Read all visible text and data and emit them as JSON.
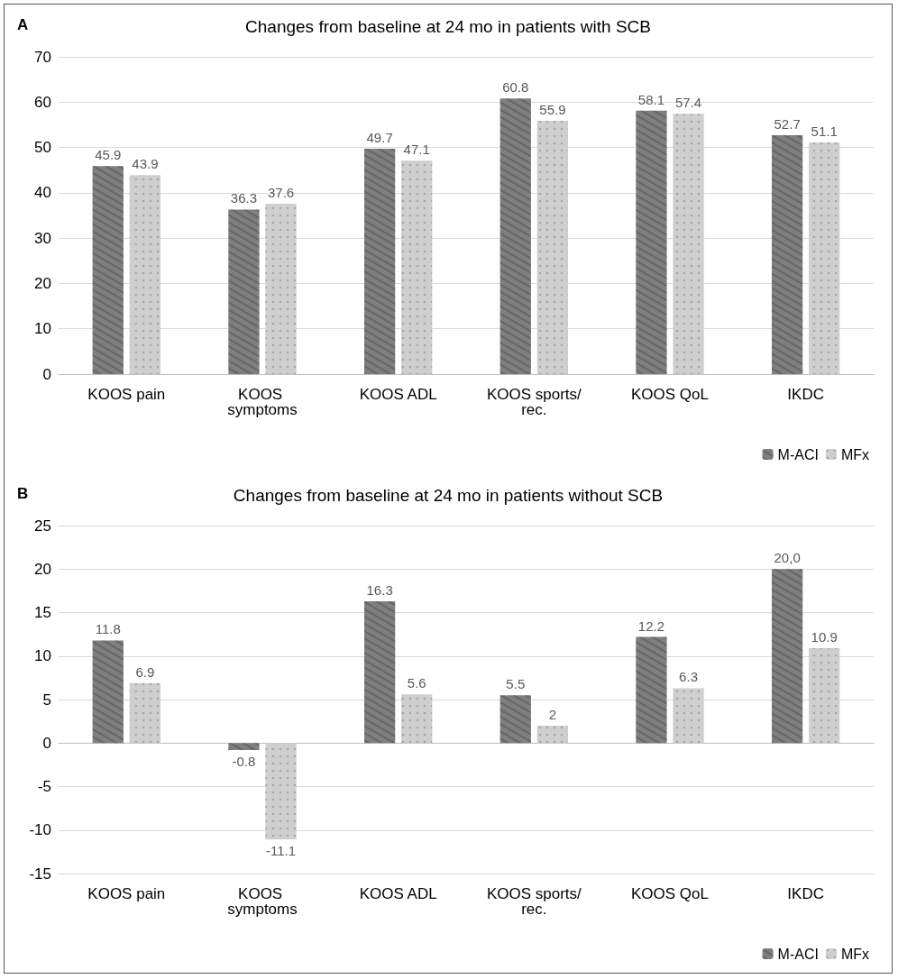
{
  "chart_data": [
    {
      "type": "bar",
      "title": "Changes from baseline at 24 mo in patients with SCB",
      "annotations": [
        "A"
      ],
      "categories": [
        "KOOS pain",
        "KOOS symptoms",
        "KOOS ADL",
        "KOOS sports/rec.",
        "KOOS QoL",
        "IKDC"
      ],
      "series": [
        {
          "name": "M-ACI",
          "color": "#7f7f7f",
          "values": [
            45.9,
            36.3,
            49.7,
            60.8,
            58.1,
            52.7
          ]
        },
        {
          "name": "MFx",
          "color": "#cfcfcf",
          "values": [
            43.9,
            37.6,
            47.1,
            55.9,
            57.4,
            51.1
          ]
        }
      ],
      "ylim": [
        0,
        70
      ],
      "yticks": [
        0,
        10,
        20,
        30,
        40,
        50,
        60,
        70
      ],
      "grid": "y",
      "legend": "bottom right",
      "data_labels": true
    },
    {
      "type": "bar",
      "title": "Changes from baseline at 24 mo in patients without SCB",
      "annotations": [
        "B"
      ],
      "categories": [
        "KOOS pain",
        "KOOS symptoms",
        "KOOS ADL",
        "KOOS sports/rec.",
        "KOOS QoL",
        "IKDC"
      ],
      "series": [
        {
          "name": "M-ACI",
          "color": "#7f7f7f",
          "values": [
            11.8,
            -0.8,
            16.3,
            5.5,
            12.2,
            20.0
          ],
          "value_labels": [
            "11.8",
            "-0.8",
            "16.3",
            "5.5",
            "12.2",
            "20,0"
          ]
        },
        {
          "name": "MFx",
          "color": "#cfcfcf",
          "values": [
            6.9,
            -11.1,
            5.6,
            2,
            6.3,
            10.9
          ],
          "value_labels": [
            "6.9",
            "-11.1",
            "5.6",
            "2",
            "6.3",
            "10.9"
          ]
        }
      ],
      "ylim": [
        -15,
        25
      ],
      "yticks": [
        -15,
        -10,
        -5,
        0,
        5,
        10,
        15,
        20,
        25
      ],
      "grid": "y",
      "legend": "bottom right"
    }
  ]
}
